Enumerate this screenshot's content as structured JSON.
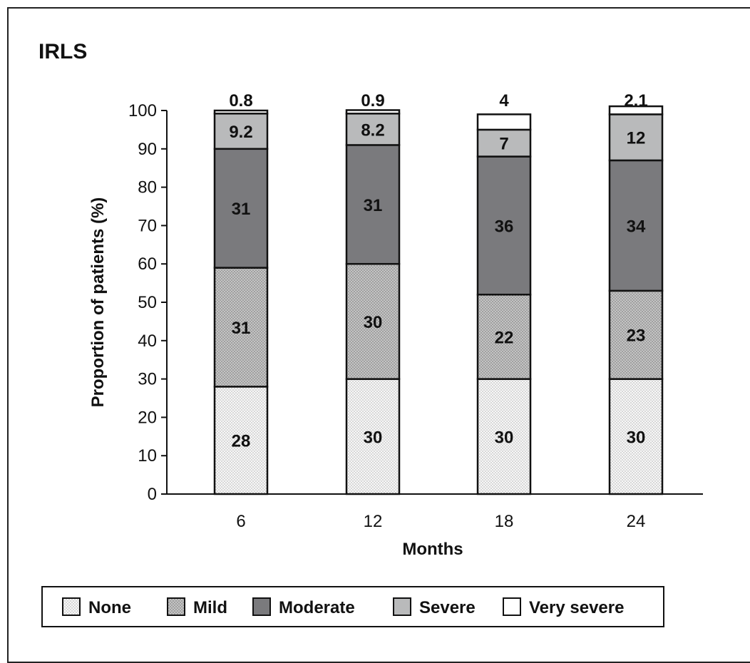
{
  "chart_data": {
    "type": "bar",
    "stacked": true,
    "title": "IRLS",
    "xlabel": "Months",
    "ylabel": "Proportion of patients (%)",
    "ylim": [
      0,
      100
    ],
    "yticks": [
      0,
      10,
      20,
      30,
      40,
      50,
      60,
      70,
      80,
      90,
      100
    ],
    "categories": [
      "6",
      "12",
      "18",
      "24"
    ],
    "series": [
      {
        "name": "None",
        "values": [
          28,
          30,
          30,
          30
        ],
        "labels": [
          "28",
          "30",
          "30",
          "30"
        ],
        "color": "#ececec",
        "pattern": "dots-light"
      },
      {
        "name": "Mild",
        "values": [
          31,
          30,
          22,
          23
        ],
        "labels": [
          "31",
          "30",
          "22",
          "23"
        ],
        "color": "#b4b4b4",
        "pattern": "dots-dark"
      },
      {
        "name": "Moderate",
        "values": [
          31,
          31,
          36,
          34
        ],
        "labels": [
          "31",
          "31",
          "36",
          "34"
        ],
        "color": "#7a7a7d",
        "pattern": "solid"
      },
      {
        "name": "Severe",
        "values": [
          9.2,
          8.2,
          7,
          12
        ],
        "labels": [
          "9.2",
          "8.2",
          "7",
          "12"
        ],
        "color": "#b9babb",
        "pattern": "solid"
      },
      {
        "name": "Very severe",
        "values": [
          0.8,
          0.9,
          4,
          2.1
        ],
        "labels": [
          "0.8",
          "0.9",
          "4",
          "2.1"
        ],
        "color": "#ffffff",
        "pattern": "solid"
      }
    ],
    "legend_position": "bottom",
    "grid": false
  }
}
